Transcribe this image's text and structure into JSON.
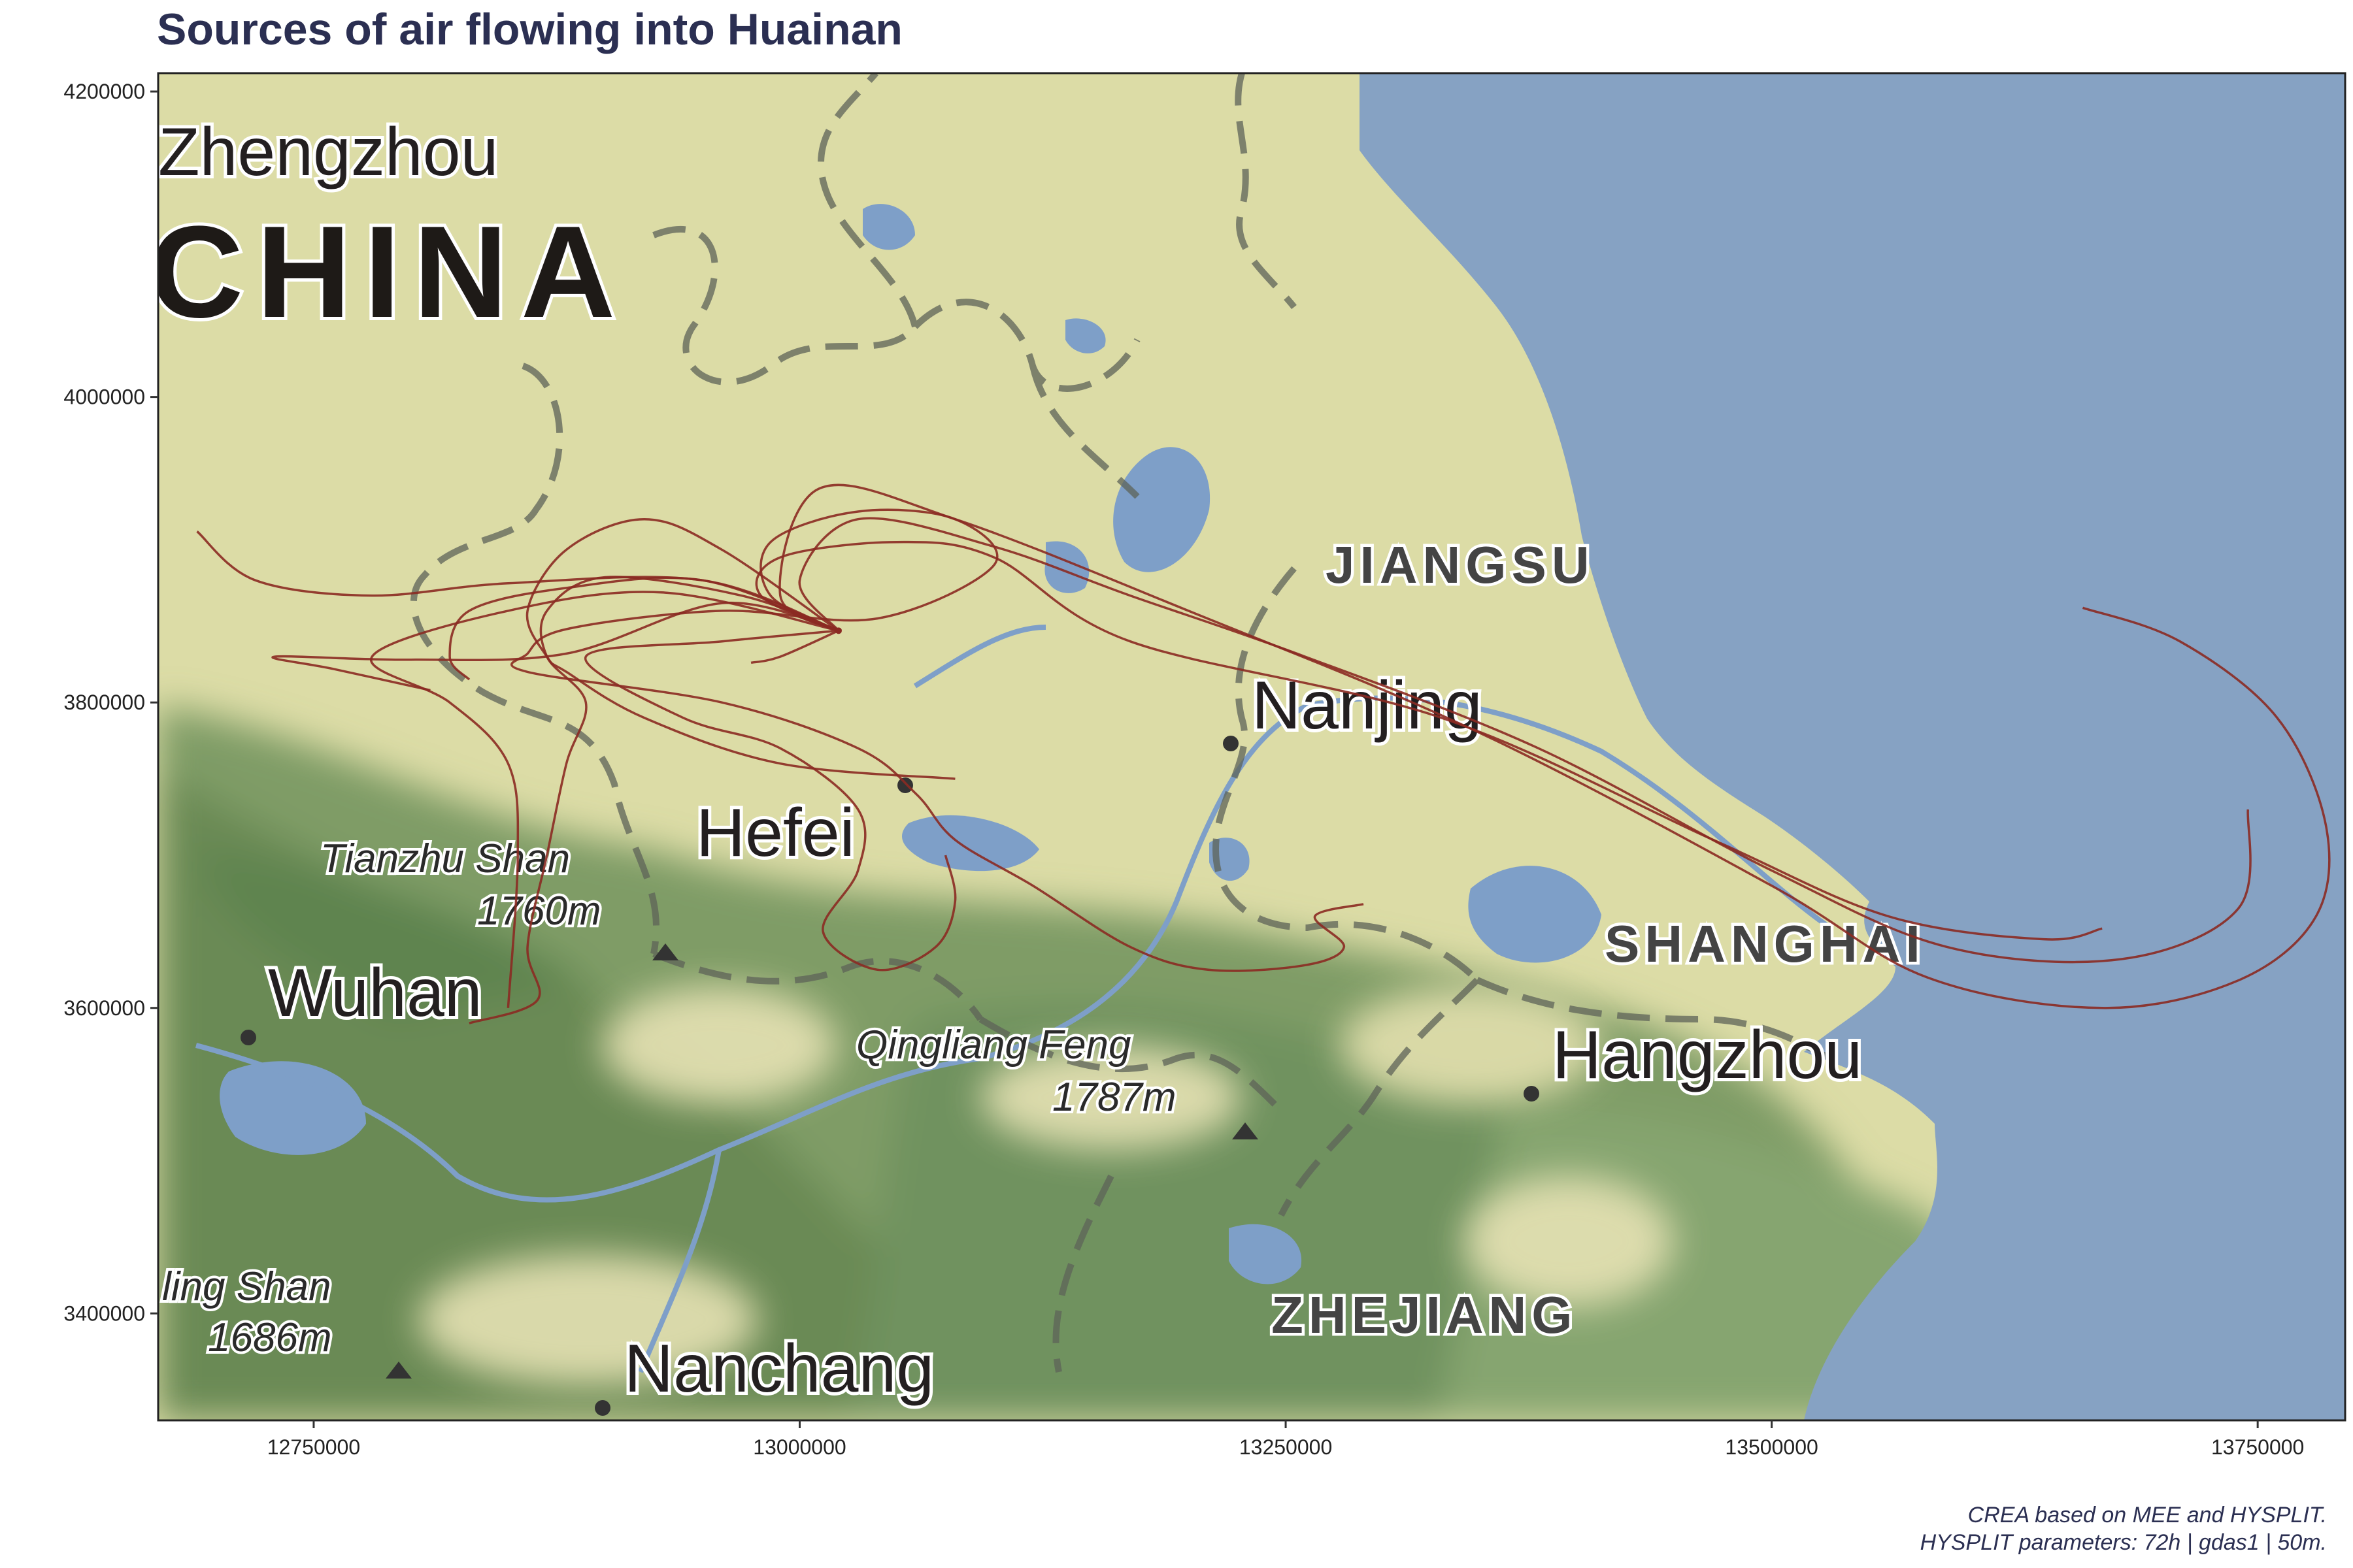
{
  "title": "Sources of air flowing into Huainan",
  "caption": {
    "line1": "CREA based on MEE and HYSPLIT.",
    "line2": "HYSPLIT parameters: 72h | gdas1 | 50m."
  },
  "colors": {
    "title": "#2b2f52",
    "land": "#dcdca6",
    "sea": "#86a2c3",
    "forest": "#6f925e",
    "water": "#7e9fc8",
    "trajectory": "#8b2a22"
  },
  "axes": {
    "x_ticks": [
      "12750000",
      "13000000",
      "13250000",
      "13500000",
      "13750000"
    ],
    "y_ticks": [
      "4200000",
      "4000000",
      "3800000",
      "3600000",
      "3400000"
    ],
    "xlim": [
      12670000,
      13795000
    ],
    "ylim": [
      3330000,
      4212000
    ]
  },
  "map_labels": {
    "zhengzhou": "Zhengzhou",
    "china": "CHINA",
    "jiangsu": "JIANGSU",
    "nanjing": "Nanjing",
    "hefei": "Hefei",
    "tianzhu": "Tianzhu Shan",
    "tianzhu_elev": "1760m",
    "wuhan": "Wuhan",
    "qingliang": "Qingliang Feng",
    "qingliang_elev": "1787m",
    "shanghai": "SHANGHAI",
    "hangzhou": "Hangzhou",
    "ling": "ling Shan",
    "ling_elev": "1686m",
    "zhejiang": "ZHEJIANG",
    "nanchang": "Nanchang"
  },
  "receptor": {
    "name": "Huainan",
    "x": 13020000,
    "y": 3847000
  },
  "trajectories": [
    [
      [
        13020000,
        3847000
      ],
      [
        12950000,
        3880000
      ],
      [
        12850000,
        3878000
      ],
      [
        12780000,
        3870000
      ],
      [
        12720000,
        3880000
      ],
      [
        12690000,
        3912000
      ]
    ],
    [
      [
        13020000,
        3847000
      ],
      [
        12930000,
        3872000
      ],
      [
        12850000,
        3860000
      ],
      [
        12780000,
        3830000
      ],
      [
        12820000,
        3800000
      ],
      [
        12850000,
        3760000
      ],
      [
        12855000,
        3700000
      ],
      [
        12850000,
        3600000
      ]
    ],
    [
      [
        13020000,
        3847000
      ],
      [
        12960000,
        3865000
      ],
      [
        12880000,
        3832000
      ],
      [
        12800000,
        3828000
      ],
      [
        12730000,
        3830000
      ],
      [
        12760000,
        3822000
      ],
      [
        12810000,
        3808000
      ]
    ],
    [
      [
        13020000,
        3847000
      ],
      [
        12960000,
        3900000
      ],
      [
        12920000,
        3920000
      ],
      [
        12880000,
        3900000
      ],
      [
        12860000,
        3860000
      ],
      [
        12870000,
        3830000
      ],
      [
        12880000,
        3820000
      ],
      [
        12920000,
        3790000
      ],
      [
        12990000,
        3760000
      ],
      [
        13080000,
        3750000
      ]
    ],
    [
      [
        13020000,
        3847000
      ],
      [
        12985000,
        3870000
      ],
      [
        12985000,
        3905000
      ],
      [
        13030000,
        3925000
      ],
      [
        13080000,
        3920000
      ],
      [
        13100000,
        3890000
      ],
      [
        13040000,
        3855000
      ],
      [
        12960000,
        3860000
      ],
      [
        12880000,
        3848000
      ],
      [
        12860000,
        3832000
      ],
      [
        12860000,
        3820000
      ],
      [
        12960000,
        3800000
      ],
      [
        13030000,
        3770000
      ],
      [
        13060000,
        3740000
      ],
      [
        13080000,
        3710000
      ],
      [
        13120000,
        3680000
      ],
      [
        13170000,
        3640000
      ],
      [
        13210000,
        3625000
      ],
      [
        13260000,
        3628000
      ],
      [
        13280000,
        3640000
      ],
      [
        13265000,
        3660000
      ],
      [
        13290000,
        3668000
      ]
    ],
    [
      [
        13020000,
        3847000
      ],
      [
        12980000,
        3870000
      ],
      [
        12990000,
        3895000
      ],
      [
        13050000,
        3905000
      ],
      [
        13100000,
        3895000
      ],
      [
        13170000,
        3840000
      ],
      [
        13330000,
        3790000
      ],
      [
        13470000,
        3710000
      ],
      [
        13560000,
        3660000
      ],
      [
        13640000,
        3645000
      ],
      [
        13670000,
        3652000
      ]
    ],
    [
      [
        13020000,
        3847000
      ],
      [
        13000000,
        3880000
      ],
      [
        13030000,
        3920000
      ],
      [
        13100000,
        3902000
      ],
      [
        13170000,
        3870000
      ],
      [
        13260000,
        3830000
      ],
      [
        13380000,
        3770000
      ],
      [
        13500000,
        3690000
      ],
      [
        13590000,
        3640000
      ],
      [
        13680000,
        3632000
      ],
      [
        13740000,
        3665000
      ],
      [
        13745000,
        3730000
      ]
    ],
    [
      [
        13020000,
        3847000
      ],
      [
        12990000,
        3870000
      ],
      [
        13010000,
        3940000
      ],
      [
        13080000,
        3920000
      ],
      [
        13200000,
        3860000
      ],
      [
        13350000,
        3780000
      ],
      [
        13500000,
        3680000
      ],
      [
        13580000,
        3620000
      ],
      [
        13670000,
        3600000
      ],
      [
        13740000,
        3618000
      ],
      [
        13780000,
        3660000
      ],
      [
        13785000,
        3720000
      ],
      [
        13760000,
        3790000
      ],
      [
        13710000,
        3840000
      ],
      [
        13660000,
        3862000
      ]
    ],
    [
      [
        13020000,
        3847000
      ],
      [
        12960000,
        3840000
      ],
      [
        12890000,
        3830000
      ],
      [
        12940000,
        3790000
      ],
      [
        12990000,
        3770000
      ],
      [
        13030000,
        3730000
      ],
      [
        13030000,
        3690000
      ],
      [
        13012000,
        3650000
      ],
      [
        13040000,
        3625000
      ],
      [
        13070000,
        3640000
      ],
      [
        13080000,
        3670000
      ],
      [
        13075000,
        3700000
      ]
    ],
    [
      [
        13020000,
        3847000
      ],
      [
        12970000,
        3870000
      ],
      [
        12900000,
        3882000
      ],
      [
        12870000,
        3860000
      ],
      [
        12870000,
        3830000
      ],
      [
        12890000,
        3800000
      ],
      [
        12880000,
        3760000
      ],
      [
        12870000,
        3700000
      ],
      [
        12860000,
        3640000
      ],
      [
        12865000,
        3605000
      ],
      [
        12830000,
        3590000
      ]
    ],
    [
      [
        13020000,
        3847000
      ],
      [
        12990000,
        3830000
      ],
      [
        12975000,
        3826000
      ]
    ],
    [
      [
        13020000,
        3847000
      ],
      [
        12950000,
        3880000
      ],
      [
        12880000,
        3875000
      ],
      [
        12830000,
        3860000
      ],
      [
        12820000,
        3830000
      ],
      [
        12830000,
        3815000
      ]
    ]
  ]
}
